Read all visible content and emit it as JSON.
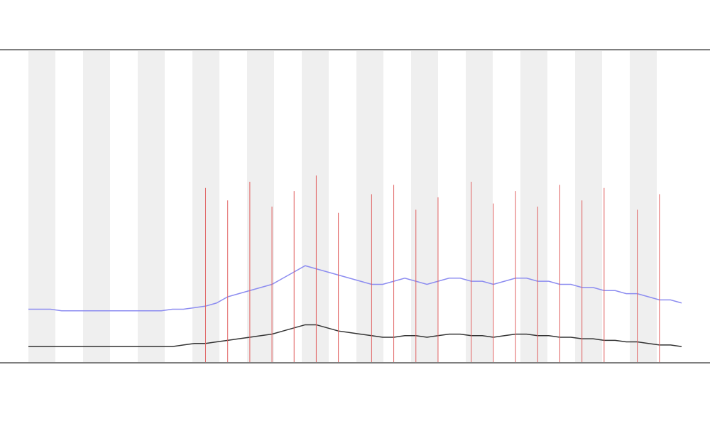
{
  "chart_data": {
    "type": "line",
    "x": [
      0,
      1,
      2,
      3,
      4,
      5,
      6,
      7,
      8,
      9,
      10,
      11,
      12,
      13,
      14,
      15,
      16,
      17,
      18,
      19,
      20,
      21,
      22,
      23,
      24,
      25,
      26,
      27,
      28,
      29,
      30,
      31,
      32,
      33,
      34,
      35,
      36,
      37,
      38,
      39,
      40,
      41,
      42,
      43,
      44,
      45,
      46,
      47,
      48,
      49,
      50,
      51,
      52,
      53,
      54,
      55,
      56,
      57,
      58,
      59
    ],
    "xlim": [
      0,
      59
    ],
    "ylim": [
      0,
      100
    ],
    "series": [
      {
        "color": "#8c8cf0",
        "values": [
          17,
          17,
          17,
          16.5,
          16.5,
          16.5,
          16.5,
          16.5,
          16.5,
          16.5,
          16.5,
          16.5,
          16.5,
          17,
          17,
          17.5,
          18,
          19,
          21,
          22,
          23,
          24,
          25,
          27,
          29,
          31,
          30,
          29,
          28,
          27,
          26,
          25,
          25,
          26,
          27,
          26,
          25,
          26,
          27,
          27,
          26,
          26,
          25,
          26,
          27,
          27,
          26,
          26,
          25,
          25,
          24,
          24,
          23,
          23,
          22,
          22,
          21,
          20,
          20,
          19
        ]
      },
      {
        "color": "#333333",
        "values": [
          5,
          5,
          5,
          5,
          5,
          5,
          5,
          5,
          5,
          5,
          5,
          5,
          5,
          5,
          5.5,
          6,
          6,
          6.5,
          7,
          7.5,
          8,
          8.5,
          9,
          10,
          11,
          12,
          12,
          11,
          10,
          9.5,
          9,
          8.5,
          8,
          8,
          8.5,
          8.5,
          8,
          8.5,
          9,
          9,
          8.5,
          8.5,
          8,
          8.5,
          9,
          9,
          8.5,
          8.5,
          8,
          8,
          7.5,
          7.5,
          7,
          7,
          6.5,
          6.5,
          6,
          5.5,
          5.5,
          5
        ]
      },
      {
        "color": "#e06060",
        "values": [
          null,
          null,
          null,
          null,
          null,
          null,
          null,
          null,
          null,
          null,
          null,
          null,
          null,
          null,
          null,
          null,
          56,
          null,
          52,
          null,
          58,
          null,
          50,
          null,
          55,
          null,
          60,
          null,
          48,
          null,
          null,
          54,
          null,
          57,
          null,
          49,
          null,
          53,
          null,
          null,
          58,
          null,
          51,
          null,
          55,
          null,
          50,
          null,
          57,
          null,
          52,
          null,
          56,
          null,
          null,
          49,
          null,
          54,
          null,
          null
        ]
      }
    ]
  }
}
